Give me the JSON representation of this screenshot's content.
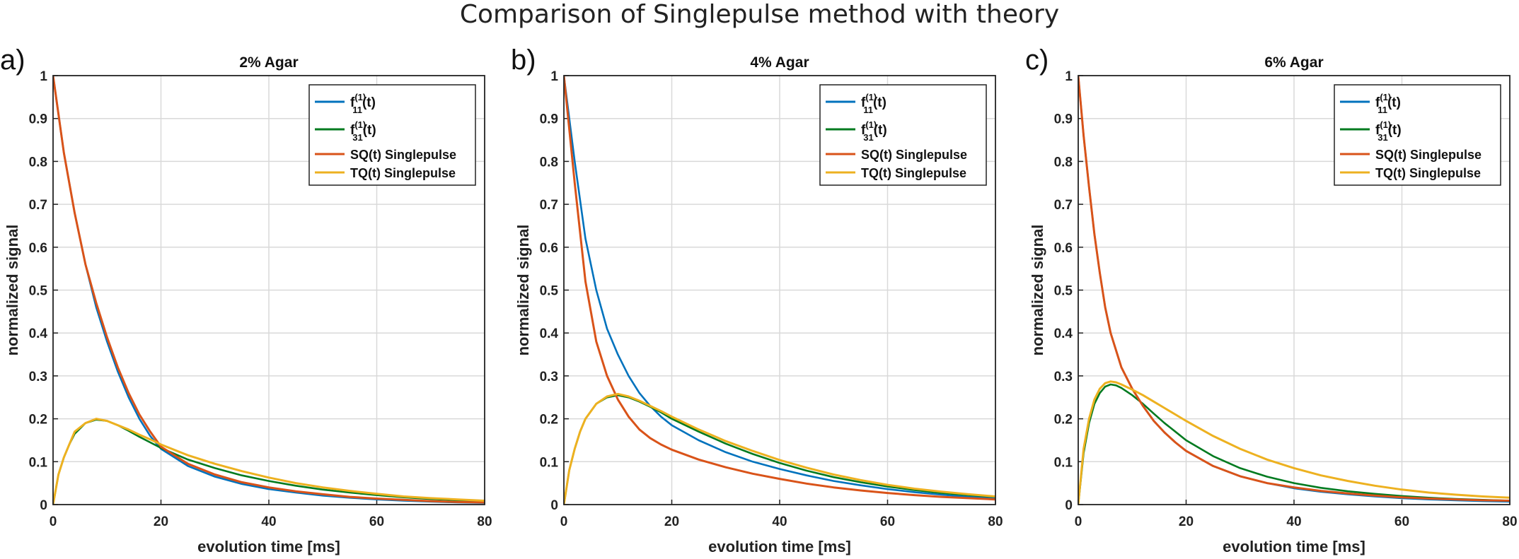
{
  "suptitle": "Comparison of Singlepulse method with theory",
  "colors": {
    "f11": "#0072BD",
    "f31": "#007A1F",
    "sq": "#D95319",
    "tq": "#EDB120"
  },
  "legend_labels": [
    {
      "main": "f",
      "sup": "(1)",
      "sub": "11",
      "tail": "(t)"
    },
    {
      "main": "f",
      "sup": "(1)",
      "sub": "31",
      "tail": "(t)"
    },
    {
      "text": "SQ(t) Singlepulse"
    },
    {
      "text": "TQ(t) Singlepulse"
    }
  ],
  "chart_data": [
    {
      "type": "line",
      "panel_label": "a)",
      "title": "2% Agar",
      "xlabel": "evolution time [ms]",
      "ylabel": "normalized signal",
      "xlim": [
        0,
        80
      ],
      "ylim": [
        0,
        1
      ],
      "xticks": [
        "0",
        "20",
        "40",
        "60",
        "80"
      ],
      "yticks": [
        "0",
        "0.1",
        "0.2",
        "0.3",
        "0.4",
        "0.5",
        "0.6",
        "0.7",
        "0.8",
        "0.9",
        "1"
      ],
      "grid": true,
      "legend_position": "top-right",
      "series": [
        {
          "name": "f11(1)(t)",
          "key": "f11",
          "x": [
            0,
            2,
            4,
            6,
            8,
            10,
            12,
            14,
            16,
            18,
            20,
            25,
            30,
            35,
            40,
            45,
            50,
            55,
            60,
            65,
            70,
            75,
            80
          ],
          "y": [
            1,
            0.82,
            0.68,
            0.56,
            0.46,
            0.38,
            0.31,
            0.25,
            0.2,
            0.16,
            0.13,
            0.09,
            0.065,
            0.048,
            0.036,
            0.028,
            0.021,
            0.016,
            0.012,
            0.009,
            0.007,
            0.005,
            0.004
          ]
        },
        {
          "name": "f31(1)(t)",
          "key": "f31",
          "x": [
            0,
            1,
            2,
            3,
            4,
            6,
            8,
            10,
            12,
            14,
            16,
            18,
            20,
            25,
            30,
            35,
            40,
            45,
            50,
            55,
            60,
            65,
            70,
            75,
            80
          ],
          "y": [
            0,
            0.07,
            0.11,
            0.14,
            0.165,
            0.19,
            0.198,
            0.195,
            0.185,
            0.172,
            0.158,
            0.145,
            0.132,
            0.105,
            0.085,
            0.068,
            0.055,
            0.044,
            0.035,
            0.028,
            0.022,
            0.017,
            0.013,
            0.01,
            0.008
          ]
        },
        {
          "name": "SQ(t) Singlepulse",
          "key": "sq",
          "x": [
            0,
            2,
            4,
            6,
            8,
            10,
            12,
            14,
            16,
            18,
            20,
            25,
            30,
            35,
            40,
            45,
            50,
            55,
            60,
            65,
            70,
            75,
            80
          ],
          "y": [
            1,
            0.82,
            0.68,
            0.56,
            0.47,
            0.39,
            0.32,
            0.26,
            0.21,
            0.17,
            0.135,
            0.095,
            0.07,
            0.052,
            0.04,
            0.031,
            0.024,
            0.018,
            0.014,
            0.011,
            0.008,
            0.006,
            0.005
          ]
        },
        {
          "name": "TQ(t) Singlepulse",
          "key": "tq",
          "x": [
            0,
            1,
            2,
            3,
            4,
            6,
            8,
            10,
            12,
            14,
            16,
            18,
            20,
            25,
            30,
            35,
            40,
            45,
            50,
            55,
            60,
            65,
            70,
            75,
            80
          ],
          "y": [
            0,
            0.07,
            0.11,
            0.14,
            0.17,
            0.19,
            0.2,
            0.195,
            0.185,
            0.175,
            0.163,
            0.152,
            0.14,
            0.115,
            0.095,
            0.078,
            0.063,
            0.05,
            0.04,
            0.032,
            0.025,
            0.019,
            0.015,
            0.012,
            0.009
          ]
        }
      ]
    },
    {
      "type": "line",
      "panel_label": "b)",
      "title": "4% Agar",
      "xlabel": "evolution time [ms]",
      "ylabel": "normalized signal",
      "xlim": [
        0,
        80
      ],
      "ylim": [
        0,
        1
      ],
      "xticks": [
        "0",
        "20",
        "40",
        "60",
        "80"
      ],
      "yticks": [
        "0",
        "0.1",
        "0.2",
        "0.3",
        "0.4",
        "0.5",
        "0.6",
        "0.7",
        "0.8",
        "0.9",
        "1"
      ],
      "grid": true,
      "legend_position": "top-right",
      "series": [
        {
          "name": "f11(1)(t)",
          "key": "f11",
          "x": [
            0,
            2,
            4,
            6,
            8,
            10,
            12,
            14,
            16,
            18,
            20,
            25,
            30,
            35,
            40,
            45,
            50,
            55,
            60,
            65,
            70,
            75,
            80
          ],
          "y": [
            1,
            0.8,
            0.62,
            0.5,
            0.41,
            0.35,
            0.3,
            0.26,
            0.23,
            0.205,
            0.185,
            0.15,
            0.122,
            0.1,
            0.083,
            0.068,
            0.055,
            0.045,
            0.036,
            0.029,
            0.023,
            0.018,
            0.015
          ]
        },
        {
          "name": "f31(1)(t)",
          "key": "f31",
          "x": [
            0,
            1,
            2,
            3,
            4,
            6,
            8,
            10,
            12,
            14,
            16,
            18,
            20,
            25,
            30,
            35,
            40,
            45,
            50,
            55,
            60,
            65,
            70,
            75,
            80
          ],
          "y": [
            0,
            0.08,
            0.13,
            0.17,
            0.2,
            0.235,
            0.25,
            0.255,
            0.25,
            0.24,
            0.228,
            0.215,
            0.2,
            0.17,
            0.142,
            0.118,
            0.097,
            0.079,
            0.064,
            0.052,
            0.042,
            0.034,
            0.027,
            0.022,
            0.018
          ]
        },
        {
          "name": "SQ(t) Singlepulse",
          "key": "sq",
          "x": [
            0,
            2,
            4,
            6,
            8,
            10,
            12,
            14,
            16,
            18,
            20,
            25,
            30,
            35,
            40,
            45,
            50,
            55,
            60,
            65,
            70,
            75,
            80
          ],
          "y": [
            1,
            0.75,
            0.52,
            0.38,
            0.3,
            0.245,
            0.205,
            0.175,
            0.155,
            0.14,
            0.128,
            0.105,
            0.087,
            0.072,
            0.06,
            0.049,
            0.04,
            0.033,
            0.027,
            0.022,
            0.018,
            0.015,
            0.012
          ]
        },
        {
          "name": "TQ(t) Singlepulse",
          "key": "tq",
          "x": [
            0,
            1,
            2,
            3,
            4,
            6,
            8,
            10,
            12,
            14,
            16,
            18,
            20,
            25,
            30,
            35,
            40,
            45,
            50,
            55,
            60,
            65,
            70,
            75,
            80
          ],
          "y": [
            0,
            0.08,
            0.13,
            0.17,
            0.2,
            0.235,
            0.252,
            0.258,
            0.252,
            0.242,
            0.23,
            0.218,
            0.205,
            0.175,
            0.148,
            0.125,
            0.104,
            0.086,
            0.07,
            0.057,
            0.046,
            0.037,
            0.03,
            0.024,
            0.019
          ]
        }
      ]
    },
    {
      "type": "line",
      "panel_label": "c)",
      "title": "6% Agar",
      "xlabel": "evolution time [ms]",
      "ylabel": "normalized signal",
      "xlim": [
        0,
        80
      ],
      "ylim": [
        0,
        1
      ],
      "xticks": [
        "0",
        "20",
        "40",
        "60",
        "80"
      ],
      "yticks": [
        "0",
        "0.1",
        "0.2",
        "0.3",
        "0.4",
        "0.5",
        "0.6",
        "0.7",
        "0.8",
        "0.9",
        "1"
      ],
      "grid": true,
      "legend_position": "top-right",
      "series": [
        {
          "name": "f11(1)(t)",
          "key": "f11",
          "x": [
            0,
            1,
            2,
            3,
            4,
            5,
            6,
            8,
            10,
            12,
            14,
            16,
            18,
            20,
            25,
            30,
            35,
            40,
            45,
            50,
            55,
            60,
            65,
            70,
            75,
            80
          ],
          "y": [
            1,
            0.86,
            0.74,
            0.63,
            0.54,
            0.46,
            0.4,
            0.32,
            0.27,
            0.23,
            0.195,
            0.168,
            0.145,
            0.125,
            0.09,
            0.066,
            0.05,
            0.038,
            0.03,
            0.024,
            0.019,
            0.015,
            0.012,
            0.01,
            0.008,
            0.007
          ]
        },
        {
          "name": "f31(1)(t)",
          "key": "f31",
          "x": [
            0,
            1,
            2,
            3,
            4,
            5,
            6,
            7,
            8,
            10,
            12,
            14,
            16,
            18,
            20,
            25,
            30,
            35,
            40,
            45,
            50,
            55,
            60,
            65,
            70,
            75,
            80
          ],
          "y": [
            0,
            0.12,
            0.19,
            0.235,
            0.26,
            0.275,
            0.28,
            0.278,
            0.272,
            0.255,
            0.235,
            0.212,
            0.19,
            0.17,
            0.15,
            0.113,
            0.085,
            0.065,
            0.05,
            0.039,
            0.031,
            0.025,
            0.02,
            0.016,
            0.013,
            0.011,
            0.009
          ]
        },
        {
          "name": "SQ(t) Singlepulse",
          "key": "sq",
          "x": [
            0,
            1,
            2,
            3,
            4,
            5,
            6,
            8,
            10,
            12,
            14,
            16,
            18,
            20,
            25,
            30,
            35,
            40,
            45,
            50,
            55,
            60,
            65,
            70,
            75,
            80
          ],
          "y": [
            1,
            0.86,
            0.74,
            0.63,
            0.54,
            0.46,
            0.4,
            0.32,
            0.27,
            0.23,
            0.195,
            0.168,
            0.145,
            0.125,
            0.09,
            0.066,
            0.05,
            0.04,
            0.032,
            0.026,
            0.021,
            0.017,
            0.014,
            0.012,
            0.01,
            0.009
          ]
        },
        {
          "name": "TQ(t) Singlepulse",
          "key": "tq",
          "x": [
            0,
            1,
            2,
            3,
            4,
            5,
            6,
            7,
            8,
            10,
            12,
            14,
            16,
            18,
            20,
            25,
            30,
            35,
            40,
            45,
            50,
            55,
            60,
            65,
            70,
            75,
            80
          ],
          "y": [
            0,
            0.13,
            0.2,
            0.245,
            0.27,
            0.283,
            0.287,
            0.285,
            0.28,
            0.268,
            0.255,
            0.24,
            0.225,
            0.21,
            0.195,
            0.16,
            0.13,
            0.105,
            0.085,
            0.068,
            0.055,
            0.044,
            0.035,
            0.028,
            0.023,
            0.019,
            0.016
          ]
        }
      ]
    }
  ]
}
